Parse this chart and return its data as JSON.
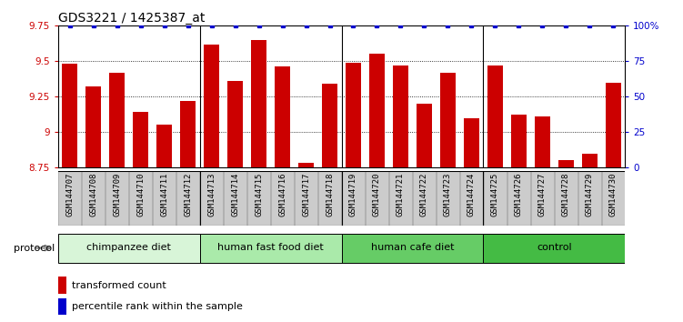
{
  "title": "GDS3221 / 1425387_at",
  "samples": [
    "GSM144707",
    "GSM144708",
    "GSM144709",
    "GSM144710",
    "GSM144711",
    "GSM144712",
    "GSM144713",
    "GSM144714",
    "GSM144715",
    "GSM144716",
    "GSM144717",
    "GSM144718",
    "GSM144719",
    "GSM144720",
    "GSM144721",
    "GSM144722",
    "GSM144723",
    "GSM144724",
    "GSM144725",
    "GSM144726",
    "GSM144727",
    "GSM144728",
    "GSM144729",
    "GSM144730"
  ],
  "bar_values": [
    9.48,
    9.32,
    9.42,
    9.14,
    9.05,
    9.22,
    9.62,
    9.36,
    9.65,
    9.46,
    8.78,
    9.34,
    9.49,
    9.55,
    9.47,
    9.2,
    9.42,
    9.1,
    9.47,
    9.12,
    9.11,
    8.8,
    8.85,
    9.35
  ],
  "percentile_values": [
    100,
    100,
    100,
    100,
    100,
    100,
    100,
    100,
    100,
    100,
    100,
    100,
    100,
    100,
    100,
    100,
    100,
    100,
    100,
    100,
    100,
    100,
    100,
    100
  ],
  "bar_color": "#cc0000",
  "percentile_color": "#0000cc",
  "ylim_left": [
    8.75,
    9.75
  ],
  "ylim_right": [
    0,
    100
  ],
  "yticks_left": [
    8.75,
    9.0,
    9.25,
    9.5,
    9.75
  ],
  "ytick_labels_left": [
    "8.75",
    "9",
    "9.25",
    "9.5",
    "9.75"
  ],
  "yticks_right": [
    0,
    25,
    50,
    75,
    100
  ],
  "ytick_labels_right": [
    "0",
    "25",
    "50",
    "75",
    "100%"
  ],
  "groups": [
    {
      "label": "chimpanzee diet",
      "start": 0,
      "end": 5,
      "color": "#d8f5d8"
    },
    {
      "label": "human fast food diet",
      "start": 6,
      "end": 11,
      "color": "#aaeaaa"
    },
    {
      "label": "human cafe diet",
      "start": 12,
      "end": 17,
      "color": "#66cc66"
    },
    {
      "label": "control",
      "start": 18,
      "end": 23,
      "color": "#44bb44"
    }
  ],
  "protocol_label": "protocol",
  "legend_bar_label": "transformed count",
  "legend_pct_label": "percentile rank within the sample",
  "tick_label_bg": "#cccccc",
  "title_fontsize": 10,
  "axis_tick_fontsize": 7.5,
  "xtick_fontsize": 6.5,
  "group_fontsize": 8
}
